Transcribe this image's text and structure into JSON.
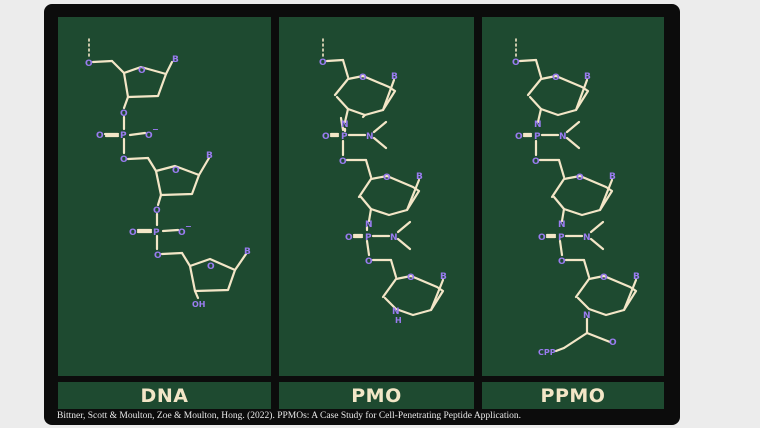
{
  "panels": [
    {
      "label": "DNA"
    },
    {
      "label": "PMO"
    },
    {
      "label": "PPMO"
    }
  ],
  "atoms": {
    "O": "O",
    "P": "P",
    "N": "N",
    "B": "B",
    "OH": "OH",
    "NH": "H",
    "charge": "−",
    "cpp": "CPP"
  },
  "citation": "Bittner, Scott & Moulton, Zoe & Moulton, Hong. (2022). PPMOs: A Case Study for Cell-Penetrating Peptide Application.",
  "colors": {
    "board": "#0c0c0c",
    "panel": "#1e4a30",
    "bond": "#f3e6c7",
    "atom": "#9a7cf0"
  }
}
